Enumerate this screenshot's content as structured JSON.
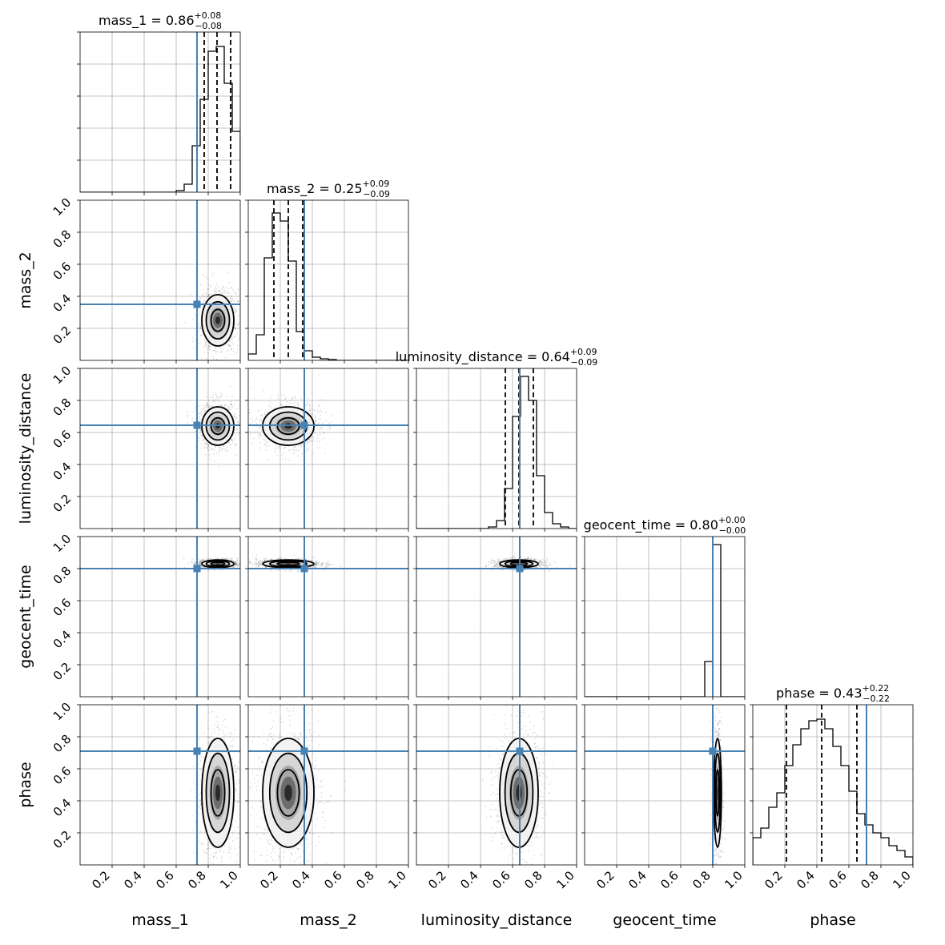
{
  "chart_data": {
    "type": "corner",
    "parameters": [
      "mass_1",
      "mass_2",
      "luminosity_distance",
      "geocent_time",
      "phase"
    ],
    "axis_labels": [
      "mass_1",
      "mass_2",
      "luminosity_distance",
      "geocent_time",
      "phase"
    ],
    "axis_range": [
      0,
      1
    ],
    "tick_labels": [
      "0.2",
      "0.4",
      "0.6",
      "0.8",
      "1.0"
    ],
    "grid": true,
    "truth_color": "#4682b4",
    "truths": [
      0.73,
      0.35,
      0.645,
      0.8,
      0.71
    ],
    "diag_titles": [
      {
        "name": "mass_1",
        "median": "0.86",
        "plus": "+0.08",
        "minus": "−0.08"
      },
      {
        "name": "mass_2",
        "median": "0.25",
        "plus": "+0.09",
        "minus": "−0.09"
      },
      {
        "name": "luminosity_distance",
        "median": "0.64",
        "plus": "+0.09",
        "minus": "−0.09"
      },
      {
        "name": "geocent_time",
        "median": "0.80",
        "plus": "+0.00",
        "minus": "−0.00"
      },
      {
        "name": "phase",
        "median": "0.43",
        "plus": "+0.22",
        "minus": "−0.22"
      }
    ],
    "quantiles": [
      [
        0.775,
        0.855,
        0.94
      ],
      [
        0.16,
        0.25,
        0.34
      ],
      [
        0.555,
        0.64,
        0.73
      ],
      [
        0.8,
        0.8,
        0.8
      ],
      [
        0.21,
        0.43,
        0.65
      ]
    ],
    "histograms": [
      {
        "edges": [
          0.0,
          0.05,
          0.1,
          0.15,
          0.2,
          0.25,
          0.3,
          0.35,
          0.4,
          0.45,
          0.5,
          0.55,
          0.6,
          0.65,
          0.7,
          0.75,
          0.8,
          0.85,
          0.9,
          0.95,
          1.0
        ],
        "counts": [
          0,
          0,
          0,
          0,
          0,
          0,
          0,
          0,
          0,
          0,
          0,
          0,
          0.01,
          0.05,
          0.29,
          0.58,
          0.88,
          0.91,
          0.68,
          0.38
        ]
      },
      {
        "edges": [
          0.0,
          0.05,
          0.1,
          0.15,
          0.2,
          0.25,
          0.3,
          0.35,
          0.4,
          0.45,
          0.5,
          0.55,
          0.6,
          0.65,
          0.7,
          0.75,
          0.8,
          0.85,
          0.9,
          0.95,
          1.0
        ],
        "counts": [
          0.04,
          0.16,
          0.64,
          0.92,
          0.87,
          0.62,
          0.18,
          0.06,
          0.02,
          0.01,
          0.005,
          0,
          0,
          0,
          0,
          0,
          0,
          0,
          0,
          0
        ]
      },
      {
        "edges": [
          0.0,
          0.05,
          0.1,
          0.15,
          0.2,
          0.25,
          0.3,
          0.35,
          0.4,
          0.45,
          0.5,
          0.55,
          0.6,
          0.65,
          0.7,
          0.75,
          0.8,
          0.85,
          0.9,
          0.95,
          1.0
        ],
        "counts": [
          0,
          0,
          0,
          0,
          0,
          0,
          0,
          0,
          0,
          0.01,
          0.05,
          0.25,
          0.7,
          0.95,
          0.8,
          0.33,
          0.1,
          0.03,
          0.01,
          0
        ]
      },
      {
        "edges": [
          0.0,
          0.05,
          0.1,
          0.15,
          0.2,
          0.25,
          0.3,
          0.35,
          0.4,
          0.45,
          0.5,
          0.55,
          0.6,
          0.65,
          0.7,
          0.75,
          0.8,
          0.85,
          0.9,
          0.95,
          1.0
        ],
        "counts": [
          0,
          0,
          0,
          0,
          0,
          0,
          0,
          0,
          0,
          0,
          0,
          0,
          0,
          0,
          0,
          0.22,
          0.95,
          0,
          0,
          0
        ]
      },
      {
        "edges": [
          0.0,
          0.05,
          0.1,
          0.15,
          0.2,
          0.25,
          0.3,
          0.35,
          0.4,
          0.45,
          0.5,
          0.55,
          0.6,
          0.65,
          0.7,
          0.75,
          0.8,
          0.85,
          0.9,
          0.95,
          1.0
        ],
        "counts": [
          0.17,
          0.23,
          0.36,
          0.45,
          0.62,
          0.75,
          0.85,
          0.9,
          0.91,
          0.85,
          0.74,
          0.62,
          0.46,
          0.32,
          0.25,
          0.2,
          0.17,
          0.12,
          0.09,
          0.05
        ]
      }
    ],
    "posterior_summary": {
      "means": [
        0.86,
        0.25,
        0.64,
        0.83,
        0.45
      ],
      "stds": [
        0.05,
        0.08,
        0.06,
        0.012,
        0.17
      ]
    }
  }
}
